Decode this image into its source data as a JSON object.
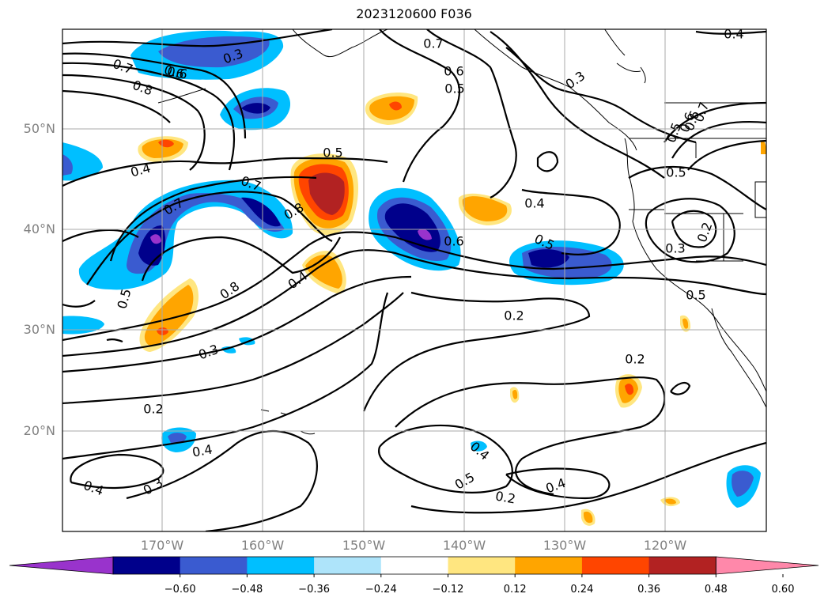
{
  "title": "2023120600 F036",
  "map": {
    "lon_range": [
      -180,
      -110
    ],
    "lat_range": [
      10,
      60
    ],
    "lat_ticks": [
      "50°N",
      "40°N",
      "30°N",
      "20°N"
    ],
    "lon_ticks": [
      "170°W",
      "160°W",
      "150°W",
      "140°W",
      "130°W",
      "120°W"
    ],
    "gridlines": true,
    "contour_labels": [
      "0.3",
      "0.7",
      "0.6",
      "0.8",
      "0.7",
      "0.6",
      "0.5",
      "0.3",
      "0.4",
      "0.5",
      "0.4",
      "0.7",
      "0.5",
      "0.6",
      "0.8",
      "0.7",
      "0.6",
      "0.4",
      "0.5",
      "0.7",
      "0.3",
      "0.2",
      "0.5",
      "0.5",
      "0.8",
      "0.4",
      "0.3",
      "0.2",
      "0.2",
      "0.4",
      "0.3",
      "0.2",
      "0.4",
      "0.5",
      "0.4",
      "0.2",
      "0.4",
      "0.6",
      "0.6",
      "0.5"
    ]
  },
  "colorbar": {
    "tick_labels": [
      "−0.60",
      "−0.48",
      "−0.36",
      "−0.24",
      "−0.12",
      "0.12",
      "0.24",
      "0.36",
      "0.48",
      "0.60"
    ],
    "colors": [
      "#9933cc",
      "#00008b",
      "#3a5bd0",
      "#00bfff",
      "#aee4fa",
      "#ffffff",
      "#ffe680",
      "#ffa500",
      "#ff4500",
      "#b22222",
      "#ff88aa"
    ],
    "extend": "both"
  }
}
